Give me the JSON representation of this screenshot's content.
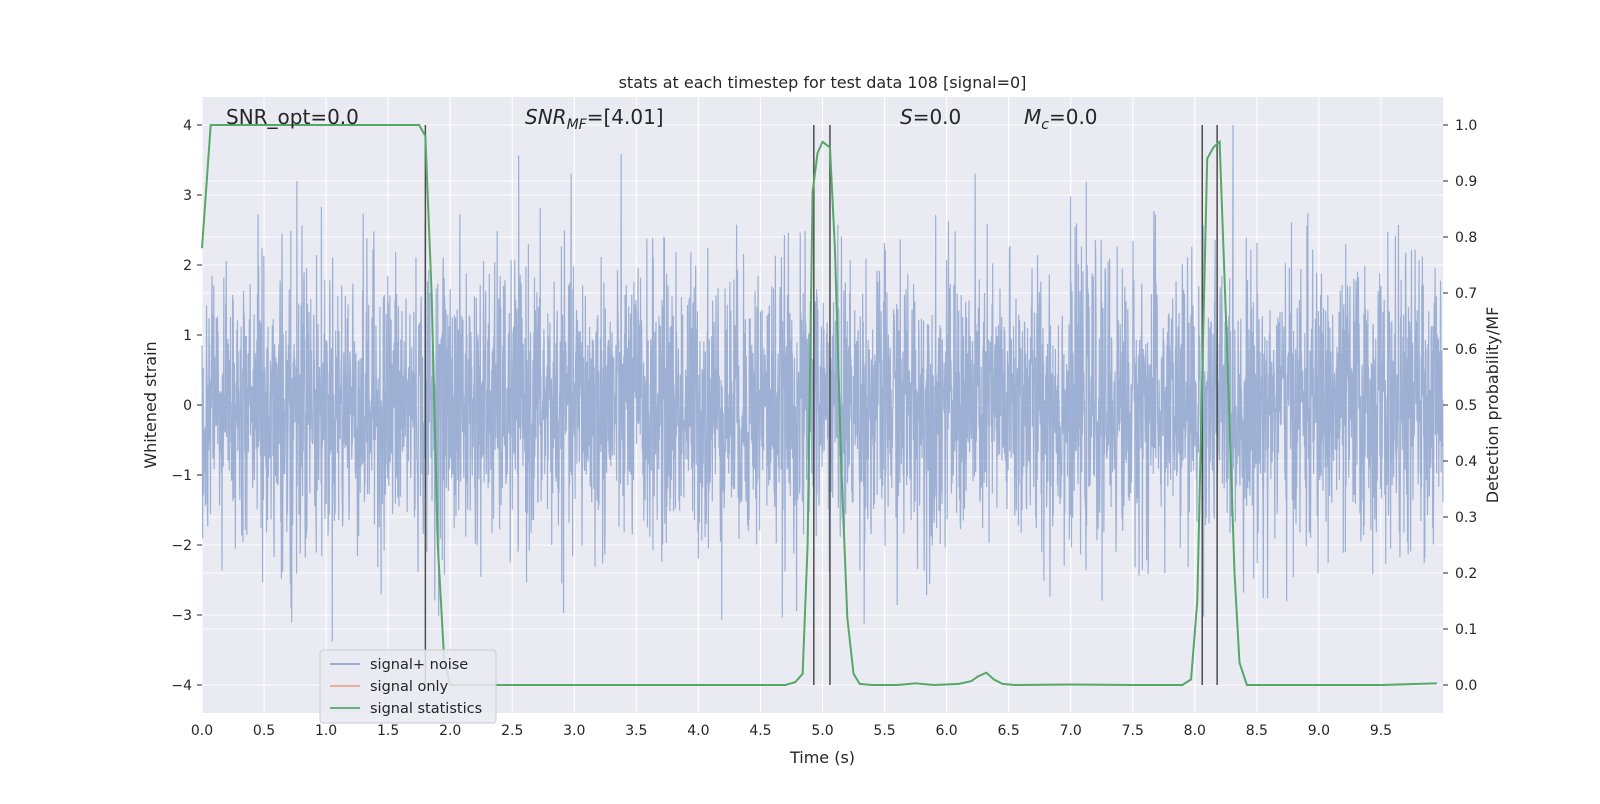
{
  "chart_data": {
    "type": "line",
    "title": "stats at each timestep for test data 108 [signal=0]",
    "xlabel": "Time (s)",
    "ylabel": "Whitened strain",
    "y2label": "Detection probability/MF",
    "xlim": [
      0.0,
      10.0
    ],
    "ylim": [
      -4.4,
      4.4
    ],
    "y2lim": [
      -0.05,
      1.05
    ],
    "x_ticks": [
      "0.0",
      "0.5",
      "1.0",
      "1.5",
      "2.0",
      "2.5",
      "3.0",
      "3.5",
      "4.0",
      "4.5",
      "5.0",
      "5.5",
      "6.0",
      "6.5",
      "7.0",
      "7.5",
      "8.0",
      "8.5",
      "9.0",
      "9.5"
    ],
    "y_ticks": [
      "4",
      "3",
      "2",
      "1",
      "0",
      "−1",
      "−2",
      "−3",
      "−4"
    ],
    "y2_ticks": [
      "1.0",
      "0.9",
      "0.8",
      "0.7",
      "0.6",
      "0.5",
      "0.4",
      "0.3",
      "0.2",
      "0.1",
      "0.0"
    ],
    "grid": true,
    "legend_position": "lower-left",
    "legend": [
      {
        "label": "signal+ noise",
        "color": "#8fa6cf"
      },
      {
        "label": "signal only",
        "color": "#e8a98c"
      },
      {
        "label": "signal statistics",
        "color": "#55a868"
      }
    ],
    "annotations": {
      "snr_opt": "SNR_opt=0.0",
      "snr_mf_main": "SNR",
      "snr_mf_sub": "MF",
      "snr_mf_value": "=[4.01]",
      "s_main": "S",
      "s_value": "=0.0",
      "mc_main": "M",
      "mc_sub": "c",
      "mc_value": "=0.0"
    },
    "vertical_markers": [
      1.8,
      4.93,
      5.06,
      8.06,
      8.18
    ],
    "series": [
      {
        "name": "signal+ noise",
        "color": "#8fa6cf",
        "axis": "left",
        "note_on_values": "dense random whitened-strain noise, roughly within [-4, 4]",
        "amplitude_range": [
          -4.0,
          4.0
        ]
      },
      {
        "name": "signal statistics",
        "color": "#55a868",
        "axis": "right",
        "x": [
          0.0,
          0.07,
          0.15,
          0.3,
          1.0,
          1.7,
          1.75,
          1.8,
          1.85,
          1.9,
          1.95,
          2.0,
          3.0,
          4.0,
          4.7,
          4.78,
          4.84,
          4.88,
          4.92,
          4.96,
          5.0,
          5.06,
          5.1,
          5.15,
          5.2,
          5.25,
          5.3,
          5.4,
          5.6,
          5.75,
          5.9,
          6.1,
          6.2,
          6.25,
          6.32,
          6.38,
          6.45,
          6.55,
          7.0,
          7.5,
          7.9,
          7.97,
          8.02,
          8.07,
          8.1,
          8.15,
          8.2,
          8.26,
          8.32,
          8.36,
          8.42,
          8.5,
          9.0,
          9.5,
          9.95
        ],
        "y": [
          0.78,
          1.0,
          1.0,
          1.0,
          1.0,
          1.0,
          1.0,
          0.98,
          0.7,
          0.25,
          0.05,
          0.0,
          0.0,
          0.0,
          0.0,
          0.005,
          0.02,
          0.25,
          0.88,
          0.95,
          0.97,
          0.96,
          0.78,
          0.4,
          0.12,
          0.02,
          0.002,
          0.0,
          0.0,
          0.003,
          0.0,
          0.002,
          0.007,
          0.015,
          0.022,
          0.01,
          0.002,
          0.0,
          0.001,
          0.0,
          0.0,
          0.01,
          0.15,
          0.65,
          0.94,
          0.96,
          0.97,
          0.6,
          0.2,
          0.04,
          0.0,
          0.0,
          0.0,
          0.0,
          0.003
        ]
      }
    ]
  }
}
